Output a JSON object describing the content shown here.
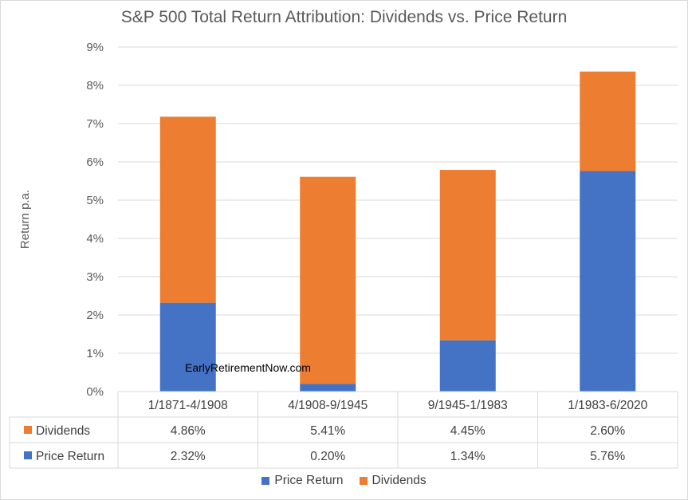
{
  "chart_data": {
    "type": "bar",
    "stacked": true,
    "title": "S&P 500 Total Return Attribution: Dividends vs. Price Return",
    "ylabel": "Return p.a.",
    "xlabel": "",
    "ylim": [
      0,
      9
    ],
    "y_ticks": [
      "0%",
      "1%",
      "2%",
      "3%",
      "4%",
      "5%",
      "6%",
      "7%",
      "8%",
      "9%"
    ],
    "categories": [
      "1/1871-4/1908",
      "4/1908-9/1945",
      "9/1945-1/1983",
      "1/1983-6/2020"
    ],
    "series": [
      {
        "name": "Price Return",
        "color": "#4472c4",
        "values": [
          2.32,
          0.2,
          1.34,
          5.76
        ],
        "labels": [
          "2.32%",
          "0.20%",
          "1.34%",
          "5.76%"
        ]
      },
      {
        "name": "Dividends",
        "color": "#ed7d31",
        "values": [
          4.86,
          5.41,
          4.45,
          2.6
        ],
        "labels": [
          "4.86%",
          "5.41%",
          "4.45%",
          "2.60%"
        ]
      }
    ],
    "grid": true,
    "legend_position": "bottom",
    "data_table": true,
    "annotation": "EarlyRetirementNow.com"
  }
}
